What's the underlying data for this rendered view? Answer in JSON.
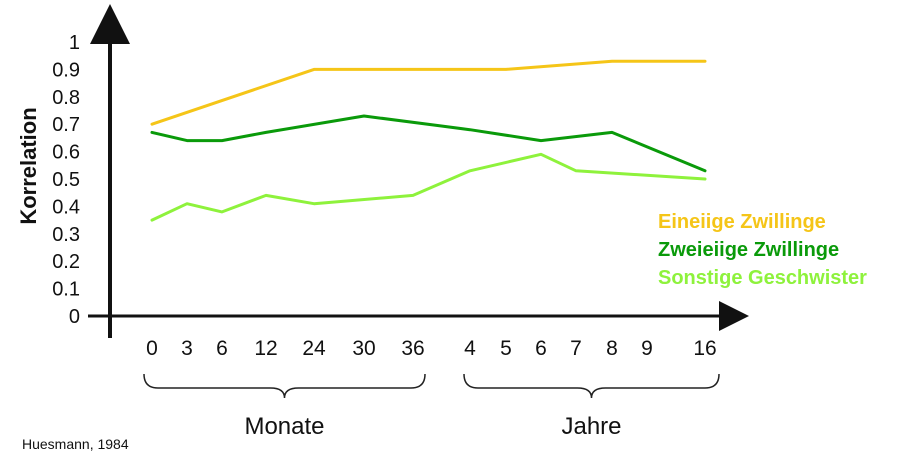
{
  "chart_data": {
    "type": "line",
    "ylabel": "Korrelation",
    "ylim": [
      0,
      1
    ],
    "yticks": [
      "0",
      "0.1",
      "0.2",
      "0.3",
      "0.4",
      "0.5",
      "0.6",
      "0.7",
      "0.8",
      "0.9",
      "1"
    ],
    "categories": [
      "0",
      "3",
      "6",
      "12",
      "24",
      "30",
      "36",
      "4",
      "5",
      "6",
      "7",
      "8",
      "9",
      "16"
    ],
    "groups": [
      {
        "label": "Monate",
        "categories": [
          "0",
          "3",
          "6",
          "12",
          "24",
          "30",
          "36"
        ]
      },
      {
        "label": "Jahre",
        "categories": [
          "4",
          "5",
          "6",
          "7",
          "8",
          "9",
          "16"
        ]
      }
    ],
    "series": [
      {
        "name": "Eineiige Zwillinge",
        "color": "#f5c518",
        "points": [
          {
            "x": "0",
            "y": 0.7
          },
          {
            "x": "24",
            "y": 0.9
          },
          {
            "x": "5",
            "y": 0.9
          },
          {
            "x": "8",
            "y": 0.93
          },
          {
            "x": "16",
            "y": 0.93
          }
        ]
      },
      {
        "name": "Zweieiige Zwillinge",
        "color": "#0a9a0a",
        "points": [
          {
            "x": "0",
            "y": 0.67
          },
          {
            "x": "3",
            "y": 0.64
          },
          {
            "x": "6",
            "y": 0.64
          },
          {
            "x": "12",
            "y": 0.67
          },
          {
            "x": "30",
            "y": 0.73
          },
          {
            "x": "4",
            "y": 0.68
          },
          {
            "x": "6",
            "y": 0.64
          },
          {
            "x": "8",
            "y": 0.67
          },
          {
            "x": "16",
            "y": 0.53
          }
        ]
      },
      {
        "name": "Sonstige Geschwister",
        "color": "#8ef23c",
        "points": [
          {
            "x": "0",
            "y": 0.35
          },
          {
            "x": "3",
            "y": 0.41
          },
          {
            "x": "6",
            "y": 0.38
          },
          {
            "x": "12",
            "y": 0.44
          },
          {
            "x": "24",
            "y": 0.41
          },
          {
            "x": "36",
            "y": 0.44
          },
          {
            "x": "4",
            "y": 0.53
          },
          {
            "x": "6",
            "y": 0.59
          },
          {
            "x": "7",
            "y": 0.53
          },
          {
            "x": "16",
            "y": 0.5
          }
        ]
      }
    ],
    "legend_position": "right",
    "grid": false
  },
  "source": "Huesmann, 1984"
}
